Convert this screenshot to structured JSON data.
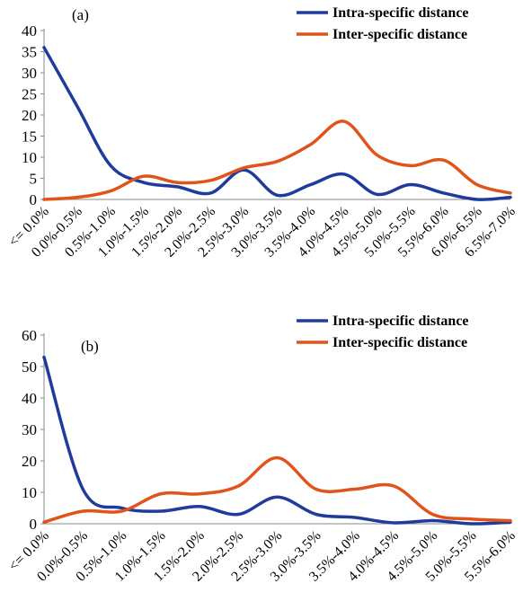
{
  "chart_data": [
    {
      "type": "line",
      "panel_label": "(a)",
      "categories": [
        "<= 0.0%",
        "0.0%-0.5%",
        "0.5%-1.0%",
        "1.0%-1.5%",
        "1.5%-2.0%",
        "2.0%-2.5%",
        "2.5%-3.0%",
        "3.0%-3.5%",
        "3.5%-4.0%",
        "4.0%-4.5%",
        "4.5%-5.0%",
        "5.0%-5.5%",
        "5.5%-6.0%",
        "6.0%-6.5%",
        "6.5%-7.0%"
      ],
      "series": [
        {
          "name": "Intra-specific distance",
          "color": "#1f3c9c",
          "values": [
            36,
            22,
            8,
            4,
            3,
            1.5,
            7,
            1,
            3.5,
            6,
            1.2,
            3.5,
            1.5,
            0,
            0.5
          ]
        },
        {
          "name": "Inter-specific distance",
          "color": "#e0541c",
          "values": [
            0,
            0.5,
            2,
            5.5,
            4,
            4.5,
            7.5,
            9,
            13,
            18.5,
            10.5,
            8,
            9.3,
            3.5,
            1.5
          ]
        }
      ],
      "ylim": [
        0,
        40
      ],
      "yticks": [
        0,
        5,
        10,
        15,
        20,
        25,
        30,
        35,
        40
      ],
      "legend": "top-right",
      "grid": false
    },
    {
      "type": "line",
      "panel_label": "(b)",
      "categories": [
        "<= 0.0%",
        "0.0%-0.5%",
        "0.5%-1.0%",
        "1.0%-1.5%",
        "1.5%-2.0%",
        "2.0%-2.5%",
        "2.5%-3.0%",
        "3.0%-3.5%",
        "3.5%-4.0%",
        "4.0%-4.5%",
        "4.5%-5.0%",
        "5.0%-5.5%",
        "5.5%-6.0%"
      ],
      "series": [
        {
          "name": "Intra-specific distance",
          "color": "#1f3c9c",
          "values": [
            53,
            11,
            5,
            4,
            5.5,
            3,
            8.5,
            3,
            2,
            0.3,
            1,
            0,
            0.5
          ]
        },
        {
          "name": "Inter-specific distance",
          "color": "#e0541c",
          "values": [
            0.5,
            4,
            4,
            9.5,
            9.5,
            12,
            21,
            11,
            11,
            12,
            3,
            1.5,
            1
          ]
        }
      ],
      "ylim": [
        0,
        60
      ],
      "yticks": [
        0,
        10,
        20,
        30,
        40,
        50,
        60
      ],
      "legend": "top-right",
      "grid": false
    }
  ]
}
